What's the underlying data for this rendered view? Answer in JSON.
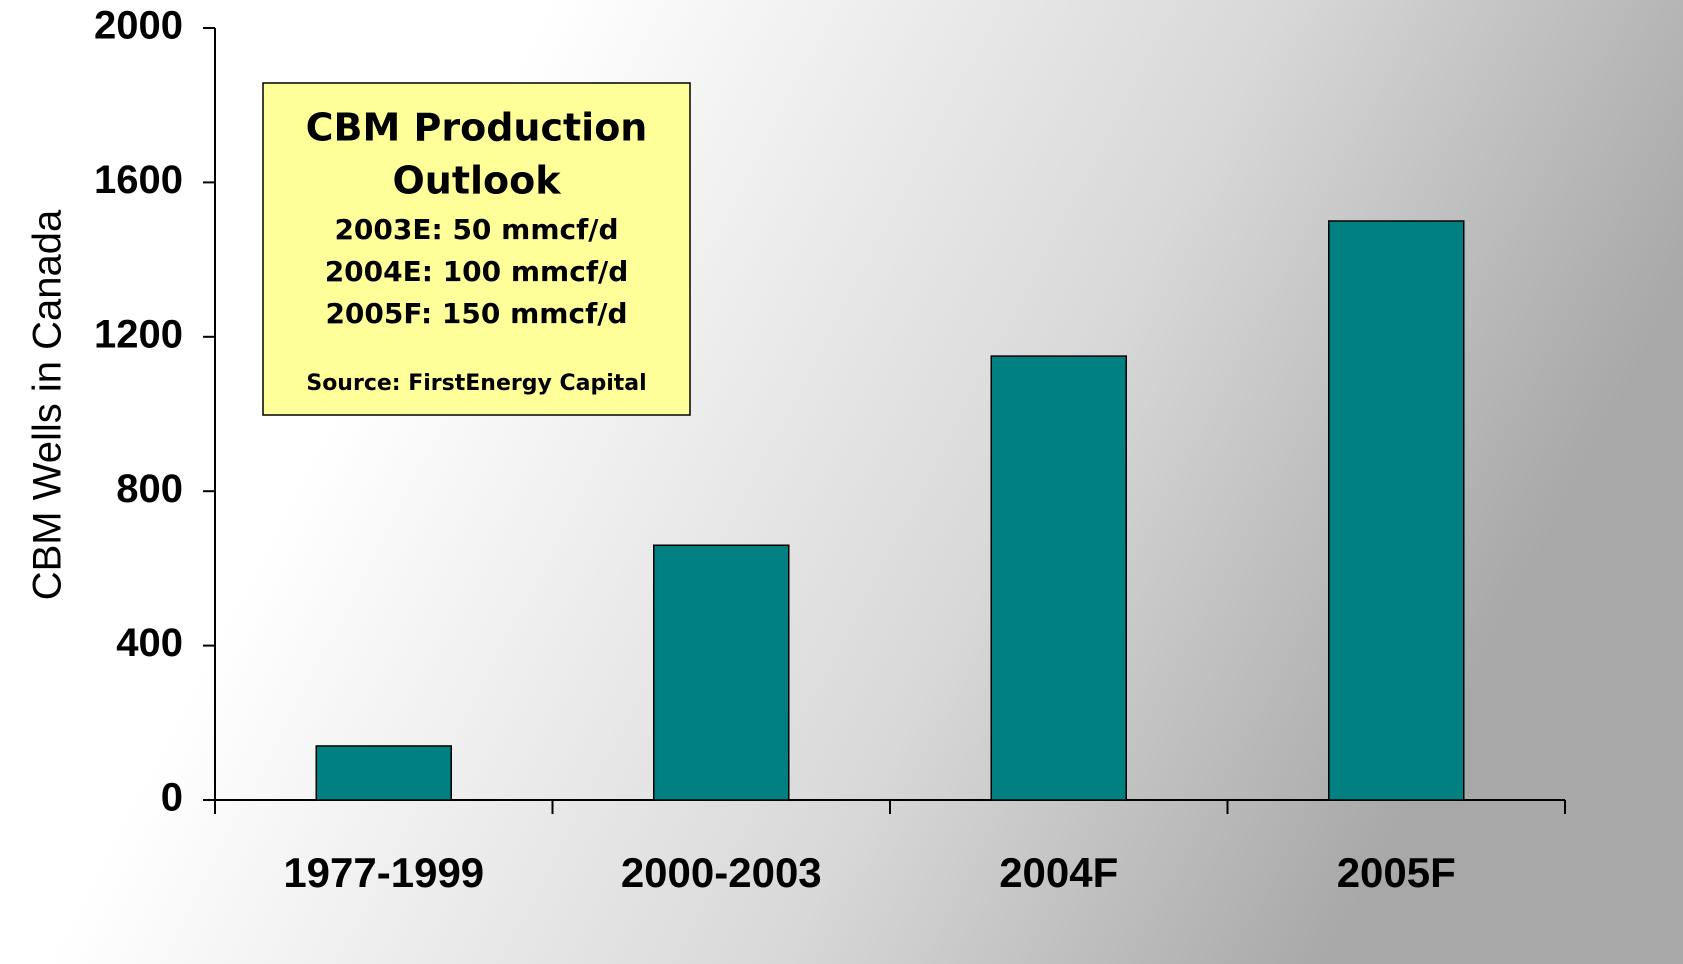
{
  "chart_data": {
    "type": "bar",
    "y_label": "CBM Wells in Canada",
    "categories": [
      "1977-1999",
      "2000-2003",
      "2004F",
      "2005F"
    ],
    "values": [
      140,
      660,
      1150,
      1500
    ],
    "color": "#008080",
    "ylim": [
      0,
      2000
    ],
    "yticks": [
      0,
      400,
      800,
      1200,
      1600,
      2000
    ],
    "annotation": {
      "heading": [
        "CBM Production",
        "Outlook"
      ],
      "lines": [
        "2003E: 50 mmcf/d",
        "2004E: 100 mmcf/d",
        "2005F: 150 mmcf/d"
      ],
      "source": "Source: FirstEnergy Capital"
    }
  }
}
